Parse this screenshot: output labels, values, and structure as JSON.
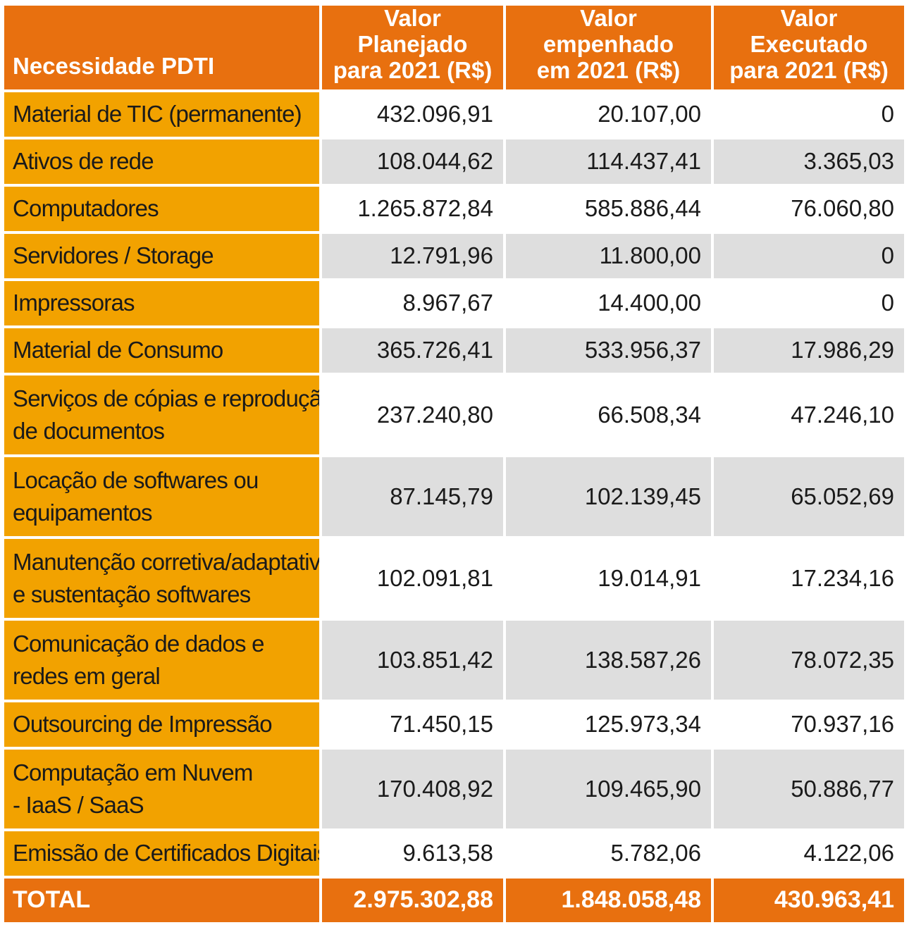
{
  "header": {
    "col0": "Necessidade PDTI",
    "col1": [
      "Valor Planejado",
      "para 2021 (R$)"
    ],
    "col2": [
      "Valor empenhado",
      "em 2021 (R$)"
    ],
    "col3": [
      "Valor Executado",
      "para 2021 (R$)"
    ]
  },
  "rows": [
    {
      "label": [
        "Material de TIC (permanente)"
      ],
      "planejado": "432.096,91",
      "empenhado": "20.107,00",
      "executado": "0"
    },
    {
      "label": [
        "Ativos de rede"
      ],
      "planejado": "108.044,62",
      "empenhado": "114.437,41",
      "executado": "3.365,03"
    },
    {
      "label": [
        "Computadores"
      ],
      "planejado": "1.265.872,84",
      "empenhado": "585.886,44",
      "executado": "76.060,80"
    },
    {
      "label": [
        "Servidores / Storage"
      ],
      "planejado": "12.791,96",
      "empenhado": "11.800,00",
      "executado": "0"
    },
    {
      "label": [
        "Impressoras"
      ],
      "planejado": "8.967,67",
      "empenhado": "14.400,00",
      "executado": "0"
    },
    {
      "label": [
        "Material de Consumo"
      ],
      "planejado": "365.726,41",
      "empenhado": "533.956,37",
      "executado": "17.986,29"
    },
    {
      "label": [
        "Serviços de cópias e reprodução",
        "de documentos"
      ],
      "planejado": "237.240,80",
      "empenhado": "66.508,34",
      "executado": "47.246,10"
    },
    {
      "label": [
        "Locação de softwares ou",
        "equipamentos"
      ],
      "planejado": "87.145,79",
      "empenhado": "102.139,45",
      "executado": "65.052,69"
    },
    {
      "label": [
        "Manutenção corretiva/adaptativa",
        "e sustentação softwares"
      ],
      "planejado": "102.091,81",
      "empenhado": "19.014,91",
      "executado": "17.234,16"
    },
    {
      "label": [
        "Comunicação de dados e",
        "redes em geral"
      ],
      "planejado": "103.851,42",
      "empenhado": "138.587,26",
      "executado": "78.072,35"
    },
    {
      "label": [
        "Outsourcing de Impressão"
      ],
      "planejado": "71.450,15",
      "empenhado": "125.973,34",
      "executado": "70.937,16"
    },
    {
      "label": [
        "Computação em Nuvem",
        "- IaaS / SaaS"
      ],
      "planejado": "170.408,92",
      "empenhado": "109.465,90",
      "executado": "50.886,77"
    },
    {
      "label": [
        "Emissão de Certificados Digitais"
      ],
      "planejado": "9.613,58",
      "empenhado": "5.782,06",
      "executado": "4.122,06"
    }
  ],
  "total": {
    "label": "TOTAL",
    "planejado": "2.975.302,88",
    "empenhado": "1.848.058,48",
    "executado": "430.963,41"
  },
  "colors": {
    "header_orange": "#e8700f",
    "label_orange": "#f2a200",
    "row_gray": "#dedede",
    "row_white": "#ffffff"
  }
}
